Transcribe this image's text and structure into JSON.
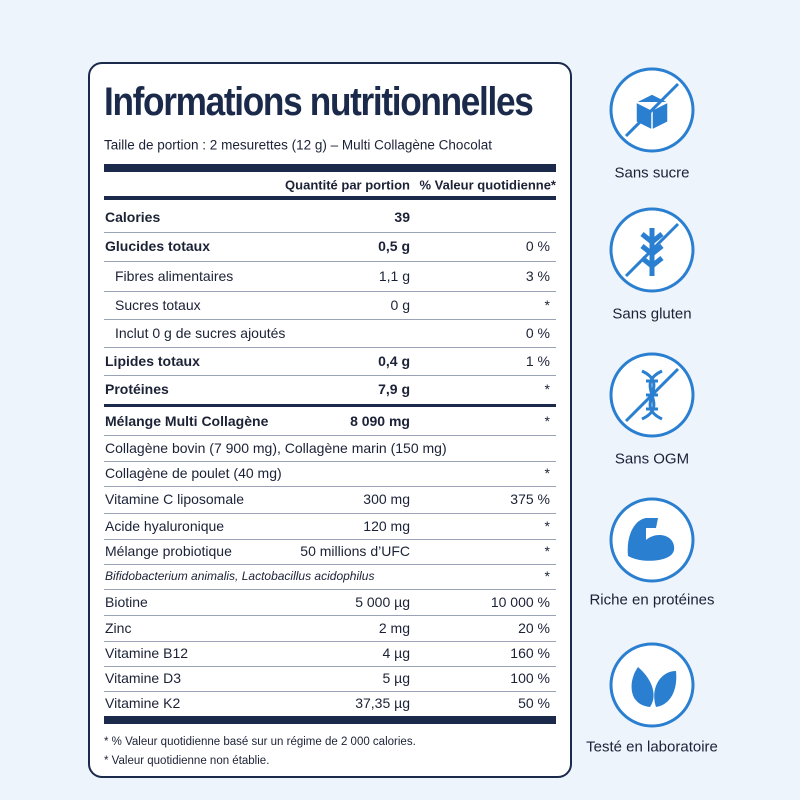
{
  "label": {
    "title": "Informations nutritionnelles",
    "serving": "Taille de portion : 2 mesurettes (12 g) – Multi Collagène Chocolat",
    "header": {
      "amount": "Quantité par portion",
      "dv": "% Valeur quotidienne*"
    },
    "rows": [
      {
        "label": "Calories",
        "amount": "39"
      },
      {
        "label": "Glucides totaux",
        "amount": "0,5 g",
        "dv": "0 %"
      },
      {
        "label": "Fibres alimentaires",
        "amount": "1,1 g",
        "dv": "3 %"
      },
      {
        "label": "Sucres totaux",
        "amount": "0 g",
        "dv": "*"
      },
      {
        "label": "Inclut 0 g de sucres ajoutés",
        "dv": "0 %"
      },
      {
        "label": "Lipides totaux",
        "amount": "0,4 g",
        "dv": "1 %"
      },
      {
        "label": "Protéines",
        "amount": "7,9 g",
        "dv": "*"
      },
      {
        "label": "Mélange Multi Collagène",
        "amount": "8 090 mg",
        "dv": "*"
      },
      {
        "label": "Collagène bovin (7 900 mg), Collagène marin (150 mg)"
      },
      {
        "label": "Collagène de poulet (40 mg)",
        "dv": "*"
      },
      {
        "label": "Vitamine C liposomale",
        "amount": "300 mg",
        "dv": "375 %"
      },
      {
        "label": "Acide hyaluronique",
        "amount": "120 mg",
        "dv": "*"
      },
      {
        "label": "Mélange probiotique",
        "amount": "50 millions d’UFC",
        "dv": "*"
      },
      {
        "label": "Bifidobacterium animalis, Lactobacillus acidophilus",
        "dv": "*"
      },
      {
        "label": "Biotine",
        "amount": "5 000 µg",
        "dv": "10 000 %"
      },
      {
        "label": "Zinc",
        "amount": "2 mg",
        "dv": "20 %"
      },
      {
        "label": "Vitamine B12",
        "amount": "4 µg",
        "dv": "160 %"
      },
      {
        "label": "Vitamine D3",
        "amount": "5 µg",
        "dv": "100 %"
      },
      {
        "label": "Vitamine K2",
        "amount": "37,35 µg",
        "dv": "50 %"
      }
    ],
    "footnotes": [
      "* % Valeur quotidienne basé sur un régime de 2 000 calories.",
      "* Valeur quotidienne non établie."
    ]
  },
  "badges": [
    "Sans sucre",
    "Sans gluten",
    "Sans OGM",
    "Riche en protéines",
    "Testé en laboratoire"
  ]
}
